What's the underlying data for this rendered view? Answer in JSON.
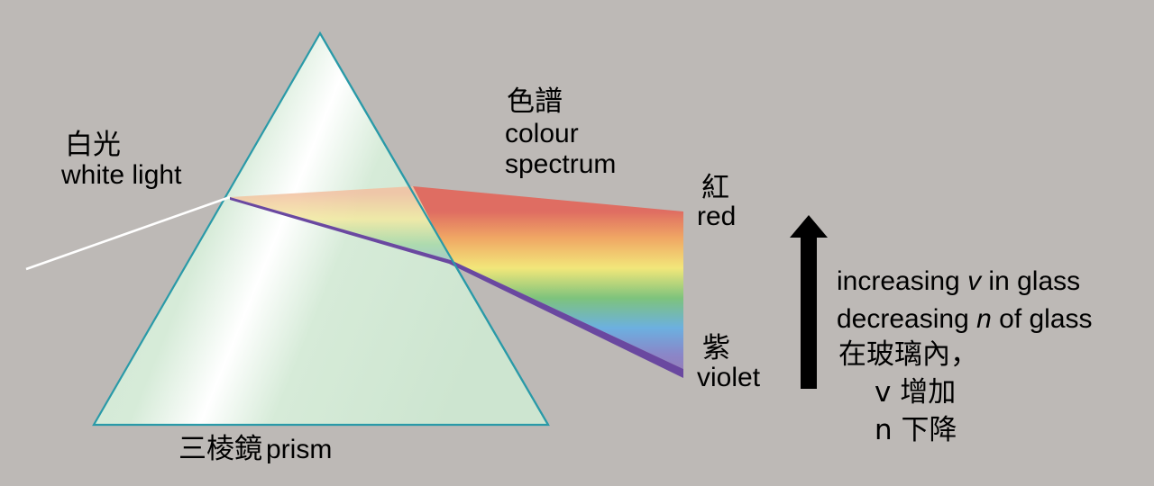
{
  "labels": {
    "white_light_zh": "白光",
    "white_light_en": "white light",
    "spectrum_zh": "色譜",
    "spectrum_en_1": "colour",
    "spectrum_en_2": "spectrum",
    "red_zh": "紅",
    "red_en": "red",
    "violet_zh": "紫",
    "violet_en": "violet",
    "prism_zh": "三棱鏡",
    "prism_en": "prism"
  },
  "arrow_note": {
    "line1_pre": "increasing ",
    "line1_var": "v",
    "line1_post": " in glass",
    "line2_pre": "decreasing ",
    "line2_var": "n",
    "line2_post": " of glass",
    "line3": "在玻璃內，",
    "line4": "v 增加",
    "line5": "n 下降"
  },
  "colors": {
    "background": "#bdb9b6",
    "prism_fill": "#cfe6d2",
    "prism_edge": "#2a9aa8",
    "red": "#e07060",
    "orange": "#f0a860",
    "yellow": "#f2e878",
    "green": "#7cc47a",
    "blue": "#6aaee0",
    "violet": "#7a52a8"
  }
}
